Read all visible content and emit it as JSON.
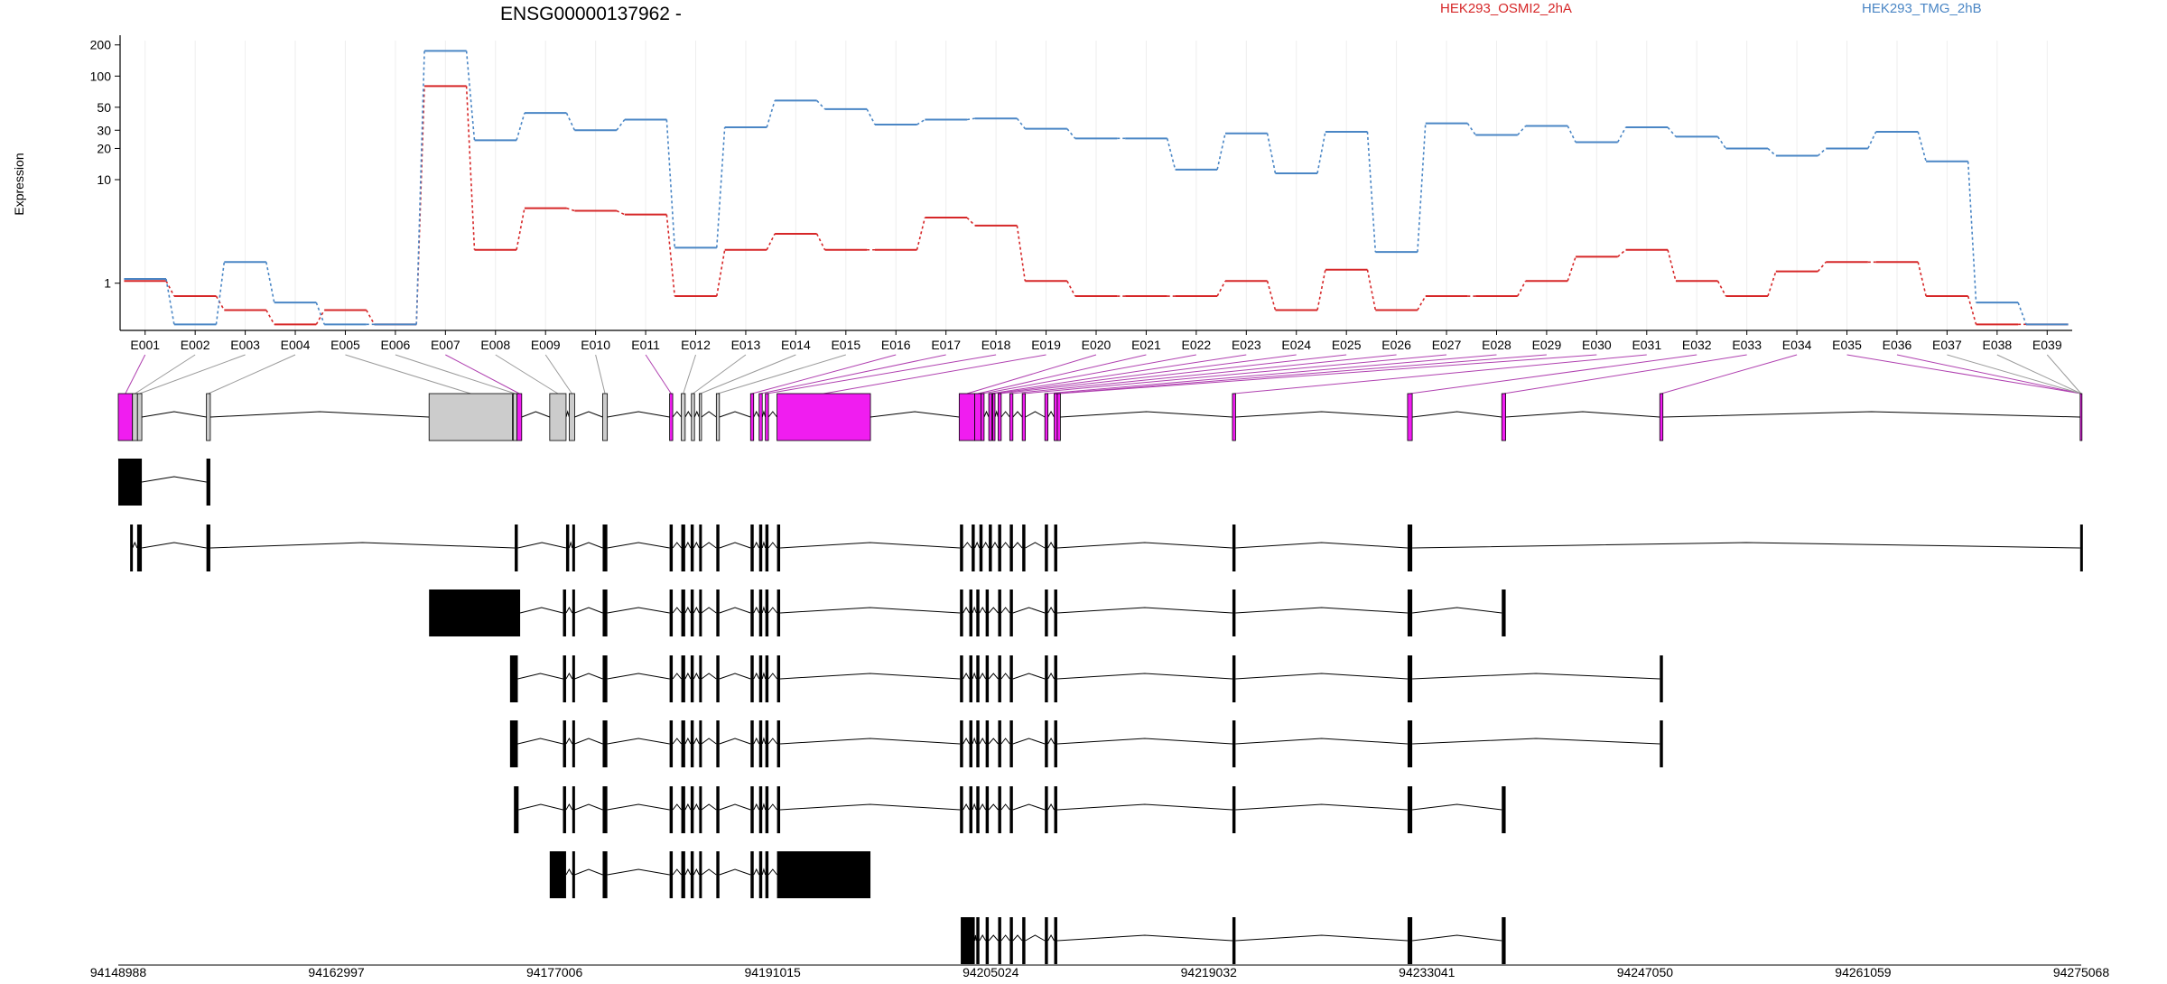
{
  "chart_data": {
    "type": "line",
    "title": "ENSG00000137962 -",
    "ylabel": "Expression",
    "yscale": "log",
    "ylim": [
      0.35,
      220
    ],
    "yticks": [
      1,
      10,
      20,
      30,
      50,
      100,
      200
    ],
    "ytick_labels": [
      "1",
      "10",
      "20",
      "30",
      "50",
      "100",
      "200"
    ],
    "grid": "vertical",
    "legend": "top",
    "categories": [
      "E001",
      "E002",
      "E003",
      "E004",
      "E005",
      "E006",
      "E007",
      "E008",
      "E009",
      "E010",
      "E011",
      "E012",
      "E013",
      "E014",
      "E015",
      "E016",
      "E017",
      "E018",
      "E019",
      "E020",
      "E021",
      "E022",
      "E023",
      "E024",
      "E025",
      "E026",
      "E027",
      "E028",
      "E029",
      "E030",
      "E031",
      "E032",
      "E033",
      "E034",
      "E035",
      "E036",
      "E037",
      "E038",
      "E039"
    ],
    "series": [
      {
        "name": "HEK293_OSMI2_2hA",
        "color": "#d62728",
        "values": [
          1.05,
          0.75,
          0.55,
          0.4,
          0.55,
          0.4,
          80,
          2.1,
          5.3,
          5.0,
          4.6,
          0.75,
          2.1,
          3.0,
          2.1,
          2.1,
          4.3,
          3.6,
          1.05,
          0.75,
          0.75,
          0.75,
          1.05,
          0.55,
          1.35,
          0.55,
          0.75,
          0.75,
          1.05,
          1.8,
          2.1,
          1.05,
          0.75,
          1.3,
          1.6,
          1.6,
          0.75,
          0.4,
          0.4
        ]
      },
      {
        "name": "HEK293_TMG_2hB",
        "color": "#4a86c5",
        "values": [
          1.1,
          0.4,
          1.6,
          0.65,
          0.4,
          0.4,
          175,
          24,
          44,
          30,
          38,
          2.2,
          32,
          58,
          48,
          34,
          38,
          39,
          31,
          25,
          25,
          12.5,
          28,
          11.5,
          29,
          2.0,
          35,
          27,
          33,
          23,
          32,
          26,
          20,
          17,
          20,
          29,
          15,
          0.65,
          0.4
        ]
      }
    ],
    "coord_ticks": [
      "94148988",
      "94162997",
      "94177006",
      "94191015",
      "94205024",
      "94219032",
      "94233041",
      "94247050",
      "94261059",
      "94275068"
    ],
    "genomic_range": [
      94148988,
      94275068
    ],
    "exon_highlight": [
      true,
      false,
      false,
      false,
      false,
      false,
      true,
      false,
      false,
      false,
      true,
      false,
      false,
      false,
      false,
      true,
      true,
      true,
      true,
      true,
      true,
      true,
      true,
      true,
      true,
      true,
      true,
      true,
      true,
      true,
      true,
      true,
      true,
      true,
      true,
      true,
      false,
      false,
      false
    ],
    "exons": [
      [
        94148988,
        94149900
      ],
      [
        94149900,
        94150220
      ],
      [
        94150220,
        94150500
      ],
      [
        94154650,
        94154900
      ],
      [
        94168950,
        94174300
      ],
      [
        94174350,
        94174600
      ],
      [
        94174600,
        94174900
      ],
      [
        94176700,
        94177750
      ],
      [
        94177950,
        94178300
      ],
      [
        94180100,
        94180400
      ],
      [
        94184400,
        94184600
      ],
      [
        94185150,
        94185400
      ],
      [
        94185800,
        94186000
      ],
      [
        94186300,
        94186450
      ],
      [
        94187400,
        94187600
      ],
      [
        94189600,
        94189800
      ],
      [
        94190150,
        94190350
      ],
      [
        94190550,
        94190750
      ],
      [
        94191300,
        94197300
      ],
      [
        94203000,
        94204000
      ],
      [
        94204000,
        94204400
      ],
      [
        94204400,
        94204600
      ],
      [
        94204900,
        94205100
      ],
      [
        94205150,
        94205300
      ],
      [
        94205500,
        94205700
      ],
      [
        94206250,
        94206450
      ],
      [
        94207050,
        94207250
      ],
      [
        94208500,
        94208700
      ],
      [
        94209100,
        94209300
      ],
      [
        94209300,
        94209500
      ],
      [
        94220550,
        94220750
      ],
      [
        94231800,
        94232100
      ],
      [
        94237850,
        94238100
      ],
      [
        94248000,
        94248200
      ],
      [
        94275000,
        94275068
      ]
    ],
    "transcripts": [
      [
        [
          94148988,
          94150500
        ],
        [
          94154650,
          94154900
        ]
      ],
      [
        [
          94149750,
          94149900
        ],
        [
          94150200,
          94150500
        ],
        [
          94154650,
          94154900
        ],
        [
          94174450,
          94174650
        ],
        [
          94177750,
          94177950
        ],
        [
          94178150,
          94178300
        ],
        [
          94180100,
          94180400
        ],
        [
          94184400,
          94184600
        ],
        [
          94185150,
          94185400
        ],
        [
          94185750,
          94185950
        ],
        [
          94186300,
          94186450
        ],
        [
          94187400,
          94187600
        ],
        [
          94189600,
          94189800
        ],
        [
          94190150,
          94190350
        ],
        [
          94190550,
          94190750
        ],
        [
          94191300,
          94191500
        ],
        [
          94203050,
          94203250
        ],
        [
          94203800,
          94204000
        ],
        [
          94204300,
          94204500
        ],
        [
          94204900,
          94205100
        ],
        [
          94205500,
          94205700
        ],
        [
          94206250,
          94206450
        ],
        [
          94207050,
          94207250
        ],
        [
          94208500,
          94208700
        ],
        [
          94209100,
          94209300
        ],
        [
          94220550,
          94220750
        ],
        [
          94231800,
          94232100
        ],
        [
          94275000,
          94275068
        ]
      ],
      [
        [
          94168950,
          94174800
        ],
        [
          94177550,
          94177750
        ],
        [
          94178150,
          94178300
        ],
        [
          94180100,
          94180400
        ],
        [
          94184400,
          94184600
        ],
        [
          94185150,
          94185400
        ],
        [
          94185750,
          94185950
        ],
        [
          94186300,
          94186450
        ],
        [
          94187400,
          94187600
        ],
        [
          94189600,
          94189800
        ],
        [
          94190150,
          94190350
        ],
        [
          94190550,
          94190750
        ],
        [
          94191300,
          94191500
        ],
        [
          94203050,
          94203250
        ],
        [
          94203650,
          94203850
        ],
        [
          94204100,
          94204300
        ],
        [
          94204700,
          94204900
        ],
        [
          94205500,
          94205700
        ],
        [
          94206250,
          94206450
        ],
        [
          94208500,
          94208700
        ],
        [
          94209100,
          94209300
        ],
        [
          94220550,
          94220750
        ],
        [
          94231800,
          94232100
        ],
        [
          94237850,
          94238100
        ]
      ],
      [
        [
          94174150,
          94174650
        ],
        [
          94177550,
          94177750
        ],
        [
          94178150,
          94178300
        ],
        [
          94180100,
          94180400
        ],
        [
          94184400,
          94184600
        ],
        [
          94185150,
          94185400
        ],
        [
          94185750,
          94185950
        ],
        [
          94186300,
          94186450
        ],
        [
          94187400,
          94187600
        ],
        [
          94189600,
          94189800
        ],
        [
          94190150,
          94190350
        ],
        [
          94190550,
          94190750
        ],
        [
          94191300,
          94191500
        ],
        [
          94203050,
          94203250
        ],
        [
          94203650,
          94203850
        ],
        [
          94204100,
          94204300
        ],
        [
          94204700,
          94204900
        ],
        [
          94205500,
          94205700
        ],
        [
          94206250,
          94206450
        ],
        [
          94208500,
          94208700
        ],
        [
          94209100,
          94209300
        ],
        [
          94220550,
          94220750
        ],
        [
          94231800,
          94232100
        ],
        [
          94248000,
          94248200
        ]
      ],
      [
        [
          94174150,
          94174650
        ],
        [
          94177550,
          94177750
        ],
        [
          94178150,
          94178300
        ],
        [
          94180100,
          94180400
        ],
        [
          94184400,
          94184600
        ],
        [
          94185150,
          94185400
        ],
        [
          94185750,
          94185950
        ],
        [
          94186300,
          94186450
        ],
        [
          94187400,
          94187600
        ],
        [
          94189600,
          94189800
        ],
        [
          94190150,
          94190350
        ],
        [
          94190550,
          94190750
        ],
        [
          94191300,
          94191500
        ],
        [
          94203050,
          94203250
        ],
        [
          94203650,
          94203850
        ],
        [
          94204100,
          94204300
        ],
        [
          94204700,
          94204900
        ],
        [
          94205500,
          94205700
        ],
        [
          94206250,
          94206450
        ],
        [
          94208500,
          94208700
        ],
        [
          94209100,
          94209300
        ],
        [
          94220550,
          94220750
        ],
        [
          94231800,
          94232100
        ],
        [
          94248000,
          94248200
        ]
      ],
      [
        [
          94174400,
          94174700
        ],
        [
          94177550,
          94177750
        ],
        [
          94178150,
          94178300
        ],
        [
          94180100,
          94180400
        ],
        [
          94184400,
          94184600
        ],
        [
          94185150,
          94185400
        ],
        [
          94185750,
          94185950
        ],
        [
          94186300,
          94186450
        ],
        [
          94187400,
          94187600
        ],
        [
          94189600,
          94189800
        ],
        [
          94190150,
          94190350
        ],
        [
          94190550,
          94190750
        ],
        [
          94191300,
          94191500
        ],
        [
          94203050,
          94203250
        ],
        [
          94203650,
          94203850
        ],
        [
          94204100,
          94204300
        ],
        [
          94204700,
          94204900
        ],
        [
          94205500,
          94205700
        ],
        [
          94206250,
          94206450
        ],
        [
          94208500,
          94208700
        ],
        [
          94209100,
          94209300
        ],
        [
          94220550,
          94220750
        ],
        [
          94231800,
          94232100
        ],
        [
          94237850,
          94238100
        ]
      ],
      [
        [
          94176700,
          94177750
        ],
        [
          94178150,
          94178300
        ],
        [
          94180100,
          94180400
        ],
        [
          94184400,
          94184600
        ],
        [
          94185150,
          94185400
        ],
        [
          94185750,
          94185950
        ],
        [
          94186300,
          94186450
        ],
        [
          94187400,
          94187600
        ],
        [
          94189600,
          94189800
        ],
        [
          94190150,
          94190350
        ],
        [
          94190550,
          94190750
        ],
        [
          94191300,
          94197300
        ]
      ],
      [
        [
          94203100,
          94204000
        ],
        [
          94204100,
          94204300
        ],
        [
          94204700,
          94204900
        ],
        [
          94205500,
          94205700
        ],
        [
          94206250,
          94206450
        ],
        [
          94207050,
          94207250
        ],
        [
          94208500,
          94208700
        ],
        [
          94209100,
          94209300
        ],
        [
          94220550,
          94220750
        ],
        [
          94231800,
          94232100
        ],
        [
          94237850,
          94238100
        ]
      ]
    ]
  }
}
